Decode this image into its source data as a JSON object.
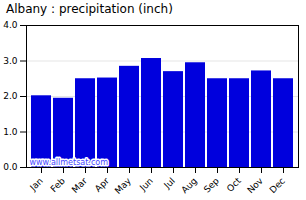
{
  "chart_data": {
    "type": "bar",
    "title": "Albany : precipitation (inch)",
    "categories": [
      "Jan",
      "Feb",
      "Mar",
      "Apr",
      "May",
      "Jun",
      "Jul",
      "Aug",
      "Sep",
      "Oct",
      "Nov",
      "Dec"
    ],
    "values": [
      2.02,
      1.95,
      2.5,
      2.52,
      2.85,
      3.07,
      2.7,
      2.95,
      2.5,
      2.5,
      2.72,
      2.5
    ],
    "color": "#0000DD",
    "ylim": [
      0,
      4
    ],
    "yticks": [
      0,
      1,
      2,
      3,
      4
    ],
    "grid": true,
    "annotation": "www.allmetsat.com"
  }
}
